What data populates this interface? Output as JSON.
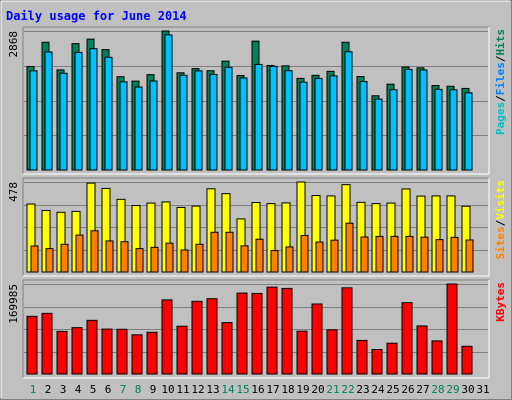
{
  "chart_data": {
    "type": "bar",
    "title": "Daily usage for June 2014",
    "categories": [
      "1",
      "2",
      "3",
      "4",
      "5",
      "6",
      "7",
      "8",
      "9",
      "10",
      "11",
      "12",
      "13",
      "14",
      "15",
      "16",
      "17",
      "18",
      "19",
      "20",
      "21",
      "22",
      "23",
      "24",
      "25",
      "26",
      "27",
      "28",
      "29",
      "30",
      "31"
    ],
    "weekend_days": [
      "1",
      "7",
      "8",
      "14",
      "15",
      "21",
      "22",
      "28",
      "29"
    ],
    "panels": [
      {
        "ymax": 2868,
        "ymax_label": "2868",
        "axis_label_parts": [
          "Pages",
          "Files",
          "Hits"
        ],
        "series": [
          {
            "name": "Hits",
            "color": "#00805c",
            "values": [
              2136,
              2636,
              2065,
              2608,
              2700,
              2484,
              1925,
              1834,
              1967,
              2868,
              2006,
              2091,
              2048,
              2246,
              1949,
              2659,
              2157,
              2149,
              1891,
              1953,
              2036,
              2636,
              1929,
              1532,
              1771,
              2126,
              2108,
              1742,
              1728,
              1683,
              0
            ]
          },
          {
            "name": "Files",
            "color": "#00c0ff",
            "values": [
              2046,
              2435,
              1996,
              2426,
              2503,
              2325,
              1819,
              1711,
              1836,
              2787,
              1954,
              2045,
              1971,
              2117,
              1899,
              2178,
              2138,
              2049,
              1812,
              1890,
              1942,
              2440,
              1826,
              1462,
              1656,
              2076,
              2064,
              1664,
              1656,
              1593,
              0
            ]
          },
          {
            "name": "Pages",
            "color": "#00c0ff",
            "values": [
              0,
              0,
              0,
              0,
              0,
              0,
              0,
              0,
              0,
              0,
              0,
              0,
              0,
              0,
              0,
              0,
              0,
              0,
              0,
              0,
              0,
              0,
              0,
              0,
              0,
              0,
              0,
              0,
              0,
              0,
              0
            ]
          }
        ]
      },
      {
        "ymax": 478,
        "ymax_label": "478",
        "axis_label_parts": [
          "Sites",
          "Visits"
        ],
        "series": [
          {
            "name": "Visits",
            "color": "#ffff00",
            "values": [
              361,
              327,
              317,
              322,
              472,
              444,
              386,
              353,
              366,
              372,
              343,
              350,
              442,
              416,
              282,
              369,
              363,
              367,
              478,
              406,
              404,
              464,
              370,
              363,
              366,
              441,
              403,
              404,
              404,
              349,
              0
            ]
          },
          {
            "name": "Sites",
            "color": "#ff8000",
            "values": [
              138,
              124,
              147,
              196,
              219,
              165,
              161,
              124,
              131,
              153,
              117,
              147,
              211,
              211,
              139,
              174,
              114,
              133,
              194,
              159,
              169,
              259,
              186,
              189,
              189,
              189,
              185,
              172,
              184,
              170,
              0
            ]
          }
        ]
      },
      {
        "ymax": 169985,
        "ymax_label": "169985",
        "axis_label_parts": [
          "KBytes"
        ],
        "series": [
          {
            "name": "KBytes",
            "color": "#ff0000",
            "values": [
              108950,
              114520,
              80510,
              87540,
              101350,
              84820,
              84440,
              74030,
              78790,
              140020,
              90280,
              137260,
              142170,
              97060,
              152830,
              152160,
              164070,
              161650,
              80860,
              132230,
              83410,
              162800,
              63410,
              46250,
              58170,
              134690,
              90790,
              62520,
              169985,
              52290,
              0
            ]
          }
        ]
      }
    ]
  }
}
